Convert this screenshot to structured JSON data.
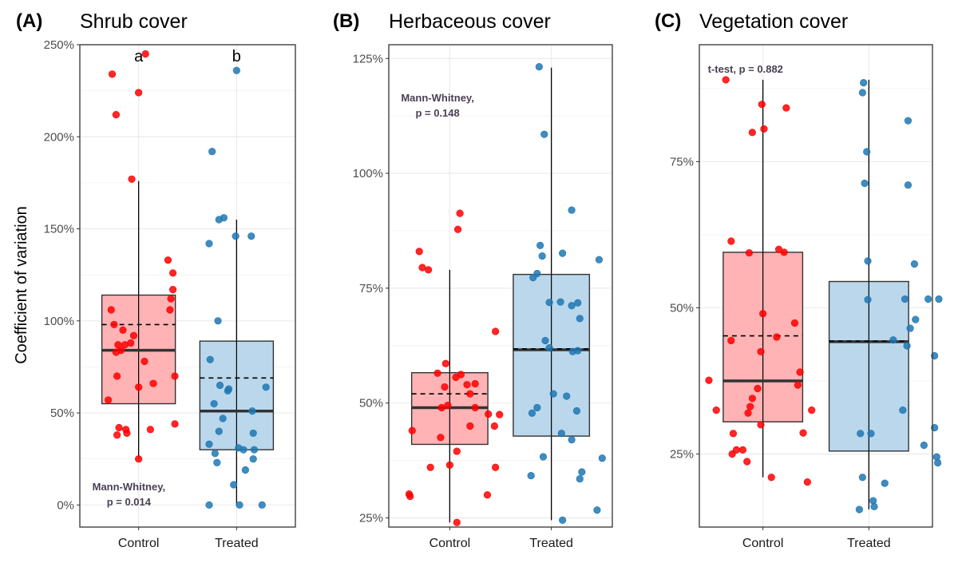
{
  "colors": {
    "control_fill": "#FFB3B5",
    "treated_fill": "#BBD7EC",
    "control_point": "#FF0000",
    "treated_point": "#1F78B4",
    "box_stroke": "#333333",
    "panel_border": "#333333",
    "grid": "#EBEBEB"
  },
  "y_axis_label": "Coefficient of variation",
  "chart_data": [
    {
      "type": "boxplot",
      "panel_letter": "(A)",
      "title": "Shrub cover",
      "categories": [
        "Control",
        "Treated"
      ],
      "ylim": [
        -0.12,
        2.5
      ],
      "y_ticks": [
        0,
        0.5,
        1.0,
        1.5,
        2.0,
        2.5
      ],
      "y_tick_labels": [
        "0%",
        "50%",
        "100%",
        "150%",
        "200%",
        "250%"
      ],
      "boxes": [
        {
          "name": "Control",
          "q1": 0.55,
          "median": 0.84,
          "q3": 1.14,
          "mean": 0.98,
          "whisker_low": 0.25,
          "whisker_high": 1.76
        },
        {
          "name": "Treated",
          "q1": 0.3,
          "median": 0.51,
          "q3": 0.89,
          "mean": 0.69,
          "whisker_low": 0.0,
          "whisker_high": 1.55
        }
      ],
      "points": [
        [
          [
            0.73,
            2.34
          ],
          [
            0.77,
            2.12
          ],
          [
            1.07,
            2.45
          ],
          [
            1.0,
            2.24
          ],
          [
            0.93,
            1.77
          ],
          [
            1.3,
            1.33
          ],
          [
            1.35,
            1.26
          ],
          [
            1.35,
            1.17
          ],
          [
            1.33,
            1.12
          ],
          [
            1.32,
            1.06
          ],
          [
            0.72,
            1.06
          ],
          [
            0.75,
            0.98
          ],
          [
            0.84,
            0.95
          ],
          [
            0.86,
            0.87
          ],
          [
            0.79,
            0.87
          ],
          [
            0.92,
            0.88
          ],
          [
            0.82,
            0.84
          ],
          [
            0.77,
            0.83
          ],
          [
            0.78,
            0.7
          ],
          [
            0.95,
            0.92
          ],
          [
            1.06,
            0.78
          ],
          [
            1.15,
            0.66
          ],
          [
            1.0,
            0.64
          ],
          [
            1.37,
            0.7
          ],
          [
            0.69,
            0.57
          ],
          [
            0.8,
            0.42
          ],
          [
            0.78,
            0.38
          ],
          [
            0.87,
            0.41
          ],
          [
            0.88,
            0.39
          ],
          [
            1.12,
            0.41
          ],
          [
            1.37,
            0.44
          ],
          [
            1.0,
            0.25
          ]
        ],
        [
          [
            2.0,
            2.36
          ],
          [
            1.75,
            1.92
          ],
          [
            1.82,
            1.55
          ],
          [
            1.87,
            1.56
          ],
          [
            1.72,
            1.42
          ],
          [
            1.99,
            1.46
          ],
          [
            2.15,
            1.46
          ],
          [
            1.81,
            1.0
          ],
          [
            1.92,
            0.63
          ],
          [
            1.91,
            0.62
          ],
          [
            1.73,
            0.79
          ],
          [
            1.83,
            0.65
          ],
          [
            1.77,
            0.55
          ],
          [
            2.16,
            0.51
          ],
          [
            2.3,
            0.64
          ],
          [
            1.86,
            0.47
          ],
          [
            1.82,
            0.4
          ],
          [
            1.72,
            0.33
          ],
          [
            2.02,
            0.31
          ],
          [
            2.17,
            0.39
          ],
          [
            2.07,
            0.3
          ],
          [
            2.18,
            0.3
          ],
          [
            1.78,
            0.28
          ],
          [
            1.8,
            0.23
          ],
          [
            2.17,
            0.25
          ],
          [
            2.09,
            0.19
          ],
          [
            1.97,
            0.11
          ],
          [
            1.72,
            0.0
          ],
          [
            2.03,
            0.0
          ],
          [
            2.26,
            0.0
          ]
        ]
      ],
      "annotations": [
        {
          "lines": [
            "Mann-Whitney,",
            "p = 0.014"
          ],
          "x": 0.9,
          "y": 0.08
        }
      ],
      "sig_letters": [
        {
          "text": "a",
          "x": 1.0,
          "y": 2.44
        },
        {
          "text": "b",
          "x": 2.0,
          "y": 2.44
        }
      ]
    },
    {
      "type": "boxplot",
      "panel_letter": "(B)",
      "title": "Herbaceous cover",
      "categories": [
        "Control",
        "Treated"
      ],
      "ylim": [
        0.23,
        1.28
      ],
      "y_ticks": [
        0.25,
        0.5,
        0.75,
        1.0,
        1.25
      ],
      "y_tick_labels": [
        "25%",
        "50%",
        "75%",
        "100%",
        "125%"
      ],
      "boxes": [
        {
          "name": "Control",
          "q1": 0.41,
          "median": 0.49,
          "q3": 0.566,
          "mean": 0.52,
          "whisker_low": 0.24,
          "whisker_high": 0.79
        },
        {
          "name": "Treated",
          "q1": 0.428,
          "median": 0.616,
          "q3": 0.78,
          "mean": 0.618,
          "whisker_low": 0.245,
          "whisker_high": 1.23
        }
      ],
      "points": [
        [
          [
            1.1,
            0.913
          ],
          [
            1.08,
            0.878
          ],
          [
            0.7,
            0.83
          ],
          [
            0.73,
            0.795
          ],
          [
            0.79,
            0.79
          ],
          [
            1.45,
            0.656
          ],
          [
            0.96,
            0.586
          ],
          [
            0.88,
            0.565
          ],
          [
            1.11,
            0.562
          ],
          [
            1.06,
            0.556
          ],
          [
            1.25,
            0.542
          ],
          [
            1.17,
            0.54
          ],
          [
            0.95,
            0.535
          ],
          [
            1.2,
            0.52
          ],
          [
            0.98,
            0.495
          ],
          [
            1.25,
            0.49
          ],
          [
            0.92,
            0.49
          ],
          [
            1.38,
            0.476
          ],
          [
            1.49,
            0.475
          ],
          [
            1.2,
            0.45
          ],
          [
            0.63,
            0.44
          ],
          [
            1.44,
            0.45
          ],
          [
            0.91,
            0.425
          ],
          [
            1.07,
            0.395
          ],
          [
            0.81,
            0.36
          ],
          [
            1.0,
            0.365
          ],
          [
            1.45,
            0.36
          ],
          [
            0.6,
            0.302
          ],
          [
            0.61,
            0.297
          ],
          [
            1.37,
            0.3
          ],
          [
            1.07,
            0.24
          ]
        ],
        [
          [
            1.88,
            1.232
          ],
          [
            1.93,
            1.085
          ],
          [
            2.2,
            0.92
          ],
          [
            1.89,
            0.843
          ],
          [
            2.11,
            0.826
          ],
          [
            1.91,
            0.82
          ],
          [
            2.47,
            0.812
          ],
          [
            1.86,
            0.782
          ],
          [
            1.82,
            0.773
          ],
          [
            2.09,
            0.72
          ],
          [
            1.98,
            0.719
          ],
          [
            2.26,
            0.718
          ],
          [
            2.2,
            0.712
          ],
          [
            2.28,
            0.684
          ],
          [
            1.94,
            0.636
          ],
          [
            1.98,
            0.62
          ],
          [
            2.26,
            0.614
          ],
          [
            2.21,
            0.612
          ],
          [
            2.02,
            0.52
          ],
          [
            2.15,
            0.515
          ],
          [
            1.86,
            0.49
          ],
          [
            1.81,
            0.478
          ],
          [
            2.25,
            0.483
          ],
          [
            2.1,
            0.434
          ],
          [
            2.2,
            0.42
          ],
          [
            2.5,
            0.38
          ],
          [
            1.92,
            0.383
          ],
          [
            2.3,
            0.35
          ],
          [
            1.8,
            0.342
          ],
          [
            2.28,
            0.335
          ],
          [
            2.45,
            0.267
          ],
          [
            2.11,
            0.245
          ]
        ]
      ],
      "annotations": [
        {
          "lines": [
            "Mann-Whitney,",
            "p = 0.148"
          ],
          "x": 0.88,
          "y": 1.157
        }
      ],
      "sig_letters": []
    },
    {
      "type": "boxplot",
      "panel_letter": "(C)",
      "title": "Vegetation cover",
      "categories": [
        "Control",
        "Treated"
      ],
      "ylim": [
        0.125,
        0.95
      ],
      "y_ticks": [
        0.25,
        0.5,
        0.75
      ],
      "y_tick_labels": [
        "25%",
        "50%",
        "75%"
      ],
      "boxes": [
        {
          "name": "Control",
          "q1": 0.305,
          "median": 0.375,
          "q3": 0.595,
          "mean": 0.452,
          "whisker_low": 0.21,
          "whisker_high": 0.89
        },
        {
          "name": "Treated",
          "q1": 0.255,
          "median": 0.442,
          "q3": 0.545,
          "mean": 0.443,
          "whisker_low": 0.155,
          "whisker_high": 0.89
        }
      ],
      "points": [
        [
          [
            0.65,
            0.89
          ],
          [
            0.99,
            0.848
          ],
          [
            1.22,
            0.842
          ],
          [
            1.01,
            0.806
          ],
          [
            0.9,
            0.8
          ],
          [
            0.7,
            0.614
          ],
          [
            1.15,
            0.6
          ],
          [
            0.87,
            0.594
          ],
          [
            1.2,
            0.595
          ],
          [
            1.0,
            0.49
          ],
          [
            1.3,
            0.474
          ],
          [
            1.13,
            0.45
          ],
          [
            0.7,
            0.444
          ],
          [
            0.98,
            0.425
          ],
          [
            1.35,
            0.39
          ],
          [
            0.49,
            0.376
          ],
          [
            1.33,
            0.368
          ],
          [
            0.95,
            0.362
          ],
          [
            0.9,
            0.345
          ],
          [
            0.88,
            0.331
          ],
          [
            0.86,
            0.32
          ],
          [
            0.56,
            0.325
          ],
          [
            1.46,
            0.325
          ],
          [
            0.98,
            0.3
          ],
          [
            0.72,
            0.285
          ],
          [
            1.38,
            0.286
          ],
          [
            0.75,
            0.257
          ],
          [
            0.81,
            0.257
          ],
          [
            0.71,
            0.25
          ],
          [
            0.85,
            0.237
          ],
          [
            1.08,
            0.21
          ],
          [
            1.42,
            0.202
          ]
        ],
        [
          [
            1.95,
            0.885
          ],
          [
            1.94,
            0.868
          ],
          [
            2.37,
            0.82
          ],
          [
            1.98,
            0.767
          ],
          [
            1.96,
            0.713
          ],
          [
            2.37,
            0.71
          ],
          [
            1.99,
            0.58
          ],
          [
            2.43,
            0.575
          ],
          [
            2.66,
            0.515
          ],
          [
            2.34,
            0.515
          ],
          [
            2.56,
            0.515
          ],
          [
            1.99,
            0.514
          ],
          [
            2.44,
            0.48
          ],
          [
            2.39,
            0.465
          ],
          [
            2.36,
            0.435
          ],
          [
            2.23,
            0.445
          ],
          [
            2.62,
            0.418
          ],
          [
            2.32,
            0.325
          ],
          [
            1.92,
            0.285
          ],
          [
            2.02,
            0.285
          ],
          [
            2.62,
            0.295
          ],
          [
            2.52,
            0.265
          ],
          [
            2.64,
            0.245
          ],
          [
            2.65,
            0.235
          ],
          [
            1.94,
            0.21
          ],
          [
            2.15,
            0.2
          ],
          [
            2.04,
            0.17
          ],
          [
            2.05,
            0.16
          ],
          [
            1.91,
            0.155
          ]
        ]
      ],
      "annotations": [
        {
          "lines": [
            "t-test, p = 0.882"
          ],
          "x": 0.48,
          "y": 0.902
        }
      ],
      "sig_letters": []
    }
  ]
}
